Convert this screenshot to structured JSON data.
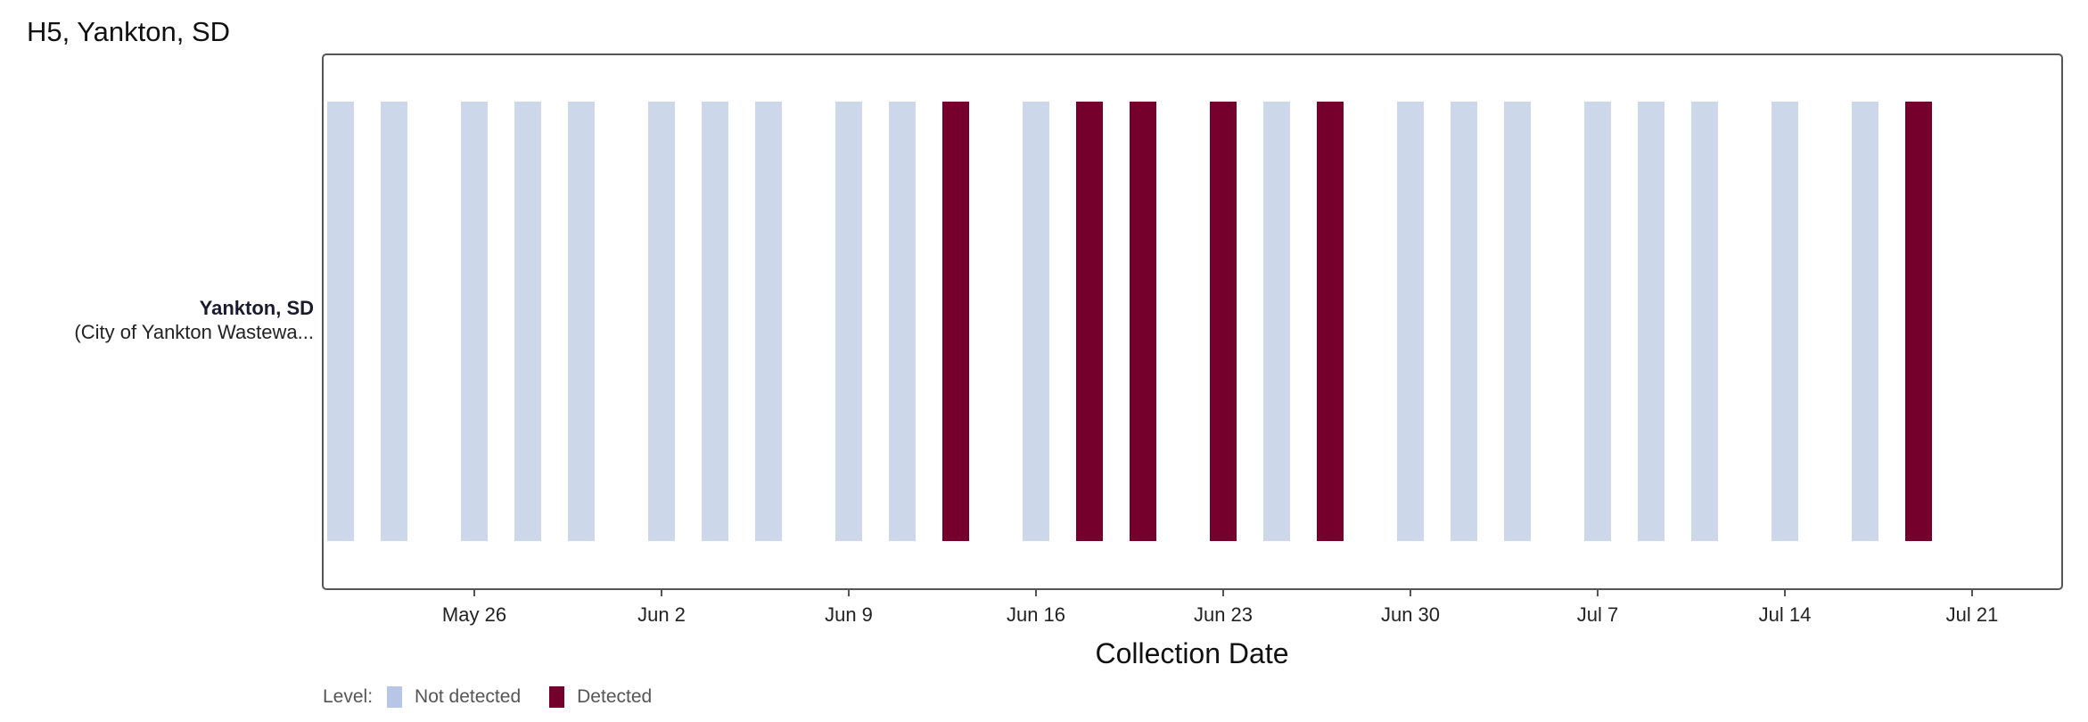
{
  "title": "H5, Yankton, SD",
  "colors": {
    "not_detected": "#cdd7ea",
    "detected": "#75002c",
    "legend_not_detected": "#b7c6e6",
    "legend_detected": "#75002c",
    "frame": "#555555",
    "axis_text": "#222222"
  },
  "site": {
    "name": "Yankton, SD",
    "detail": "(City of Yankton Wastewa..."
  },
  "legend": {
    "title": "Level:",
    "items": [
      {
        "key": "not_detected",
        "label": "Not detected"
      },
      {
        "key": "detected",
        "label": "Detected"
      }
    ]
  },
  "chart_data": {
    "type": "bar",
    "title": "H5, Yankton, SD",
    "xlabel": "Collection Date",
    "ylabel": "",
    "x_axis": {
      "range": [
        "2024-05-20",
        "2024-07-26"
      ],
      "ticks": [
        "2024-05-26",
        "2024-06-02",
        "2024-06-09",
        "2024-06-16",
        "2024-06-23",
        "2024-06-30",
        "2024-07-07",
        "2024-07-14",
        "2024-07-21"
      ],
      "tick_labels": [
        "May 26",
        "Jun 2",
        "Jun 9",
        "Jun 16",
        "Jun 23",
        "Jun 30",
        "Jul 7",
        "Jul 14",
        "Jul 21"
      ]
    },
    "grid": false,
    "legend_position": "bottom-left",
    "samples": [
      {
        "date": "2024-05-21",
        "level": "Not detected"
      },
      {
        "date": "2024-05-23",
        "level": "Not detected"
      },
      {
        "date": "2024-05-26",
        "level": "Not detected"
      },
      {
        "date": "2024-05-28",
        "level": "Not detected"
      },
      {
        "date": "2024-05-30",
        "level": "Not detected"
      },
      {
        "date": "2024-06-02",
        "level": "Not detected"
      },
      {
        "date": "2024-06-04",
        "level": "Not detected"
      },
      {
        "date": "2024-06-06",
        "level": "Not detected"
      },
      {
        "date": "2024-06-09",
        "level": "Not detected"
      },
      {
        "date": "2024-06-11",
        "level": "Not detected"
      },
      {
        "date": "2024-06-13",
        "level": "Detected"
      },
      {
        "date": "2024-06-16",
        "level": "Not detected"
      },
      {
        "date": "2024-06-18",
        "level": "Detected"
      },
      {
        "date": "2024-06-20",
        "level": "Detected"
      },
      {
        "date": "2024-06-23",
        "level": "Detected"
      },
      {
        "date": "2024-06-25",
        "level": "Not detected"
      },
      {
        "date": "2024-06-27",
        "level": "Detected"
      },
      {
        "date": "2024-06-30",
        "level": "Not detected"
      },
      {
        "date": "2024-07-02",
        "level": "Not detected"
      },
      {
        "date": "2024-07-04",
        "level": "Not detected"
      },
      {
        "date": "2024-07-07",
        "level": "Not detected"
      },
      {
        "date": "2024-07-09",
        "level": "Not detected"
      },
      {
        "date": "2024-07-11",
        "level": "Not detected"
      },
      {
        "date": "2024-07-14",
        "level": "Not detected"
      },
      {
        "date": "2024-07-17",
        "level": "Not detected"
      },
      {
        "date": "2024-07-19",
        "level": "Detected"
      }
    ]
  }
}
